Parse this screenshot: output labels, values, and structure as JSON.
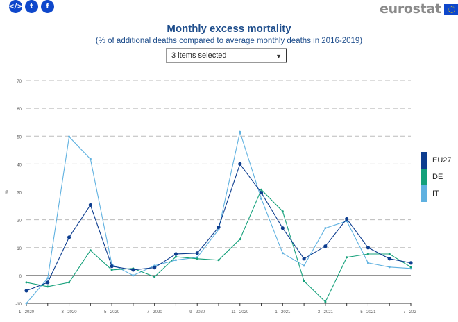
{
  "share": {
    "embed_icon": "embed-icon",
    "twitter_icon": "twitter-icon",
    "facebook_icon": "facebook-icon"
  },
  "brand": {
    "name": "eurostat"
  },
  "header": {
    "title": "Monthly excess mortality",
    "subtitle": "(% of additional deaths compared to average monthly deaths in 2016-2019)"
  },
  "selector": {
    "value": "3 items selected"
  },
  "colors": {
    "accent": "#0e47cb"
  },
  "chart_data": {
    "type": "line",
    "title": "Monthly excess mortality",
    "ylabel": "%",
    "ylim": [
      -10,
      70
    ],
    "yticks": [
      -10,
      0,
      10,
      20,
      30,
      40,
      50,
      60,
      70
    ],
    "grid": true,
    "legend_position": "right",
    "x": [
      "1 - 2020",
      "2 - 2020",
      "3 - 2020",
      "4 - 2020",
      "5 - 2020",
      "6 - 2020",
      "7 - 2020",
      "8 - 2020",
      "9 - 2020",
      "10 - 2020",
      "11 - 2020",
      "12 - 2020",
      "1 - 2021",
      "2 - 2021",
      "3 - 2021",
      "4 - 2021",
      "5 - 2021",
      "6 - 2021",
      "7 - 2021"
    ],
    "xticks": [
      "1 - 2020",
      "3 - 2020",
      "5 - 2020",
      "7 - 2020",
      "9 - 2020",
      "11 - 2020",
      "1 - 2021",
      "3 - 2021",
      "5 - 2021",
      "7 - 2021"
    ],
    "series": [
      {
        "name": "EU27",
        "color": "#0d3d8f",
        "values": [
          -5.5,
          -2.5,
          13.7,
          25.3,
          3.3,
          2,
          2.8,
          7.7,
          8,
          17.3,
          40,
          29.7,
          17,
          6,
          10.5,
          20.3,
          10,
          6,
          4.5
        ]
      },
      {
        "name": "DE",
        "color": "#14a07a",
        "values": [
          -2.5,
          -4,
          -2.5,
          9,
          2,
          2.5,
          -0.5,
          6.7,
          6,
          5.5,
          13,
          30.8,
          23,
          -2,
          -9.5,
          6.5,
          7.7,
          7.7,
          3
        ]
      },
      {
        "name": "IT",
        "color": "#5fb1e0",
        "values": [
          -10,
          -1,
          49.8,
          41.8,
          4,
          0,
          3.5,
          5.5,
          6.5,
          16.5,
          51.5,
          27.5,
          8,
          3.5,
          17,
          19.5,
          4.5,
          3,
          2.5
        ]
      }
    ]
  }
}
